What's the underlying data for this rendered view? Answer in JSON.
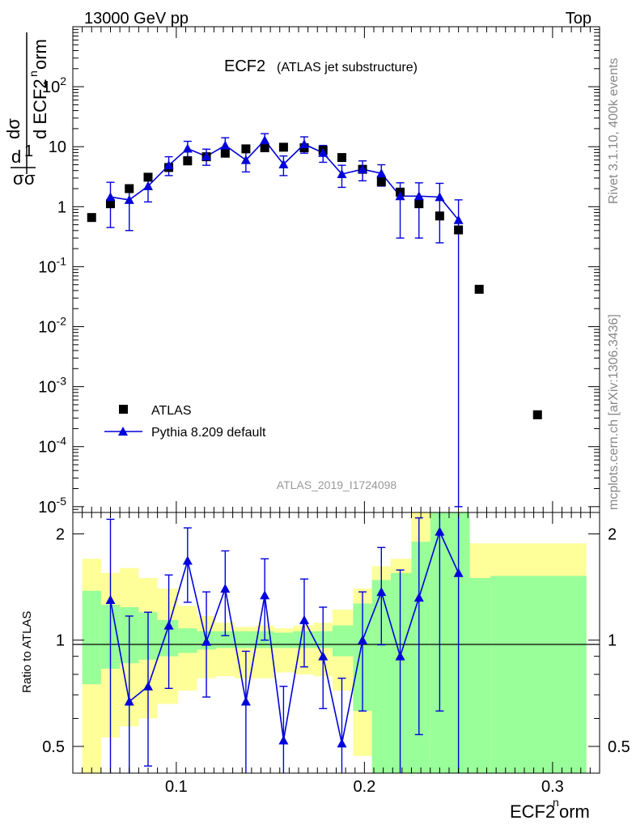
{
  "header": {
    "energy": "13000 GeV pp",
    "process": "Top"
  },
  "side": {
    "version": "Rivet 3.1.10,  400k events",
    "site": "mcplots.cern.ch [arXiv:1306.3436]"
  },
  "chart_data": [
    {
      "type": "scatter",
      "title": "ECF2",
      "subtitle": "(ATLAS jet substructure)",
      "analysis_id": "ATLAS_2019_I1724098",
      "xlabel": "ECF2^norm",
      "ylabel": "1/σ dσ/d ECF2^norm",
      "xlim": [
        0.045,
        0.325
      ],
      "ylim": [
        8e-06,
        1000
      ],
      "yscale": "log",
      "ytick_labels": [
        "10^-5",
        "10^-4",
        "10^-3",
        "10^-2",
        "10^-1",
        "1",
        "10",
        "10^2"
      ],
      "legend_position": "lower-left",
      "series": [
        {
          "name": "ATLAS",
          "marker": "square",
          "color": "#000000",
          "x": [
            0.055,
            0.065,
            0.075,
            0.085,
            0.096,
            0.106,
            0.116,
            0.126,
            0.137,
            0.147,
            0.157,
            0.168,
            0.178,
            0.188,
            0.199,
            0.209,
            0.219,
            0.229,
            0.24,
            0.25,
            0.261,
            0.292
          ],
          "y": [
            0.66,
            1.12,
            2.0,
            3.1,
            4.5,
            5.8,
            6.8,
            7.8,
            9.2,
            9.6,
            9.8,
            9.6,
            8.7,
            6.6,
            4.2,
            2.6,
            1.75,
            1.12,
            0.7,
            0.41,
            0.042,
            0.00034
          ]
        },
        {
          "name": "Pythia 8.209 default",
          "marker": "triangle",
          "color": "#0000dd",
          "x": [
            0.065,
            0.075,
            0.085,
            0.096,
            0.106,
            0.116,
            0.126,
            0.137,
            0.147,
            0.157,
            0.168,
            0.178,
            0.188,
            0.199,
            0.209,
            0.219,
            0.229,
            0.24,
            0.25
          ],
          "y": [
            1.45,
            1.3,
            2.2,
            4.9,
            9.3,
            6.9,
            10.5,
            6.0,
            12.8,
            5.1,
            11.0,
            7.9,
            3.5,
            4.2,
            3.6,
            1.5,
            1.5,
            1.45,
            0.6
          ],
          "err_up": [
            1.1,
            1.0,
            1.1,
            1.9,
            3.0,
            2.2,
            3.6,
            2.5,
            3.7,
            1.9,
            3.6,
            2.6,
            1.4,
            1.6,
            1.4,
            1.0,
            1.0,
            1.0,
            0.7
          ],
          "err_down": [
            1.0,
            0.9,
            1.0,
            1.6,
            2.5,
            2.0,
            3.1,
            2.2,
            3.2,
            1.8,
            3.2,
            2.4,
            1.4,
            1.5,
            1.4,
            1.2,
            1.2,
            1.2,
            0.59999
          ]
        }
      ]
    },
    {
      "type": "line",
      "ylabel": "Ratio to ATLAS",
      "xlabel": "ECF2^norm",
      "xlim": [
        0.045,
        0.325
      ],
      "ylim": [
        0.42,
        2.3
      ],
      "yscale": "log",
      "yticks": [
        0.5,
        1,
        2
      ],
      "xticks": [
        0.1,
        0.2,
        0.3
      ],
      "reference": 1,
      "bins": [
        0.05,
        0.06,
        0.07,
        0.08,
        0.09,
        0.101,
        0.111,
        0.121,
        0.131,
        0.142,
        0.152,
        0.162,
        0.173,
        0.183,
        0.194,
        0.204,
        0.214,
        0.225,
        0.235,
        0.245,
        0.256,
        0.267,
        0.318
      ],
      "bands": [
        {
          "name": "ATLAS total uncertainty",
          "color": "#ffff99",
          "low": [
            0.37,
            0.53,
            0.57,
            0.6,
            0.66,
            0.72,
            0.78,
            0.79,
            0.78,
            0.78,
            0.81,
            0.8,
            0.79,
            0.72,
            0.47,
            0.42,
            0.42,
            0.42,
            0.42,
            0.42,
            0.42,
            0.42
          ],
          "high": [
            1.7,
            1.55,
            1.6,
            1.5,
            1.4,
            1.25,
            1.17,
            1.12,
            1.09,
            1.1,
            1.08,
            1.1,
            1.12,
            1.22,
            1.4,
            1.62,
            1.7,
            2.3,
            2.3,
            2.3,
            1.88,
            1.88
          ]
        },
        {
          "name": "ATLAS statistical uncertainty",
          "color": "#99ff99",
          "low": [
            0.75,
            0.83,
            0.86,
            0.88,
            0.9,
            0.92,
            0.94,
            0.95,
            0.95,
            0.95,
            0.95,
            0.95,
            0.95,
            0.9,
            0.63,
            0.42,
            0.42,
            0.42,
            0.42,
            0.42,
            0.42,
            0.42
          ],
          "high": [
            1.38,
            1.26,
            1.24,
            1.2,
            1.14,
            1.08,
            1.06,
            1.06,
            1.06,
            1.06,
            1.05,
            1.06,
            1.06,
            1.1,
            1.27,
            1.48,
            1.55,
            1.9,
            2.3,
            2.3,
            1.5,
            1.52
          ]
        }
      ],
      "series": [
        {
          "name": "Pythia 8.209 default",
          "color": "#0000dd",
          "x": [
            0.065,
            0.075,
            0.085,
            0.096,
            0.106,
            0.116,
            0.126,
            0.137,
            0.147,
            0.157,
            0.168,
            0.178,
            0.188,
            0.199,
            0.209,
            0.219,
            0.229,
            0.24,
            0.25
          ],
          "y": [
            1.3,
            0.67,
            0.74,
            1.1,
            1.68,
            0.99,
            1.4,
            0.67,
            1.34,
            0.52,
            1.14,
            0.9,
            0.51,
            1.0,
            1.37,
            0.9,
            1.32,
            2.03,
            1.55
          ],
          "err_up": [
            0.9,
            0.5,
            0.46,
            0.43,
            0.4,
            0.38,
            0.39,
            0.26,
            0.36,
            0.22,
            0.35,
            0.34,
            0.27,
            0.37,
            0.46,
            0.68,
            0.9,
            0.6,
            0.9
          ],
          "err_down": [
            0.9,
            0.4,
            0.3,
            0.37,
            0.4,
            0.3,
            0.37,
            0.32,
            0.34,
            0.18,
            0.3,
            0.26,
            0.1,
            0.37,
            0.4,
            0.5,
            0.78,
            1.4,
            1.5
          ]
        }
      ]
    }
  ]
}
